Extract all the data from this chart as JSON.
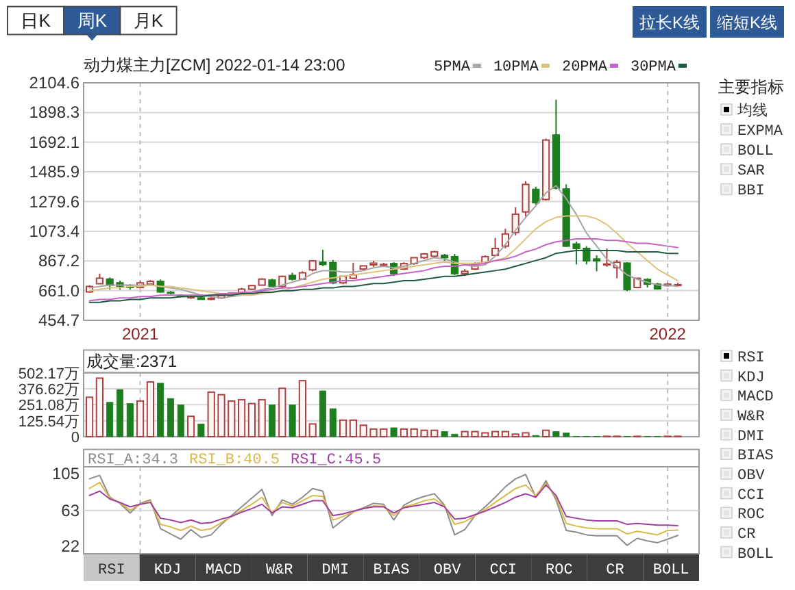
{
  "chart_data": [
    {
      "type": "other",
      "categories": [
        "日K",
        "周K",
        "月K",
        "拉长K线",
        "缩短K线"
      ],
      "colors": [
        "#ffffff",
        "#2e5b97",
        "#ffffff",
        "#2e5b97",
        "#2e5b97"
      ]
    },
    {
      "type": "candlestick",
      "title": "动力煤主力[ZCM] 2022-01-14 23:00",
      "categories": [
        null,
        null,
        null,
        null,
        null,
        "2021",
        null,
        null,
        null,
        null,
        null,
        null,
        null,
        null,
        null,
        null,
        null,
        null,
        null,
        null,
        null,
        null,
        null,
        null,
        null,
        null,
        null,
        null,
        null,
        null,
        null,
        null,
        null,
        null,
        null,
        null,
        null,
        null,
        null,
        null,
        null,
        null,
        null,
        null,
        null,
        null,
        null,
        null,
        null,
        null,
        null,
        null,
        null,
        null,
        null,
        null,
        null,
        "2022",
        null
      ],
      "ohlc": [
        [
          652,
          699,
          646,
          690
        ],
        [
          709,
          779,
          706,
          747
        ],
        [
          741,
          753,
          668,
          699
        ],
        [
          715,
          731,
          668,
          693
        ],
        [
          690,
          706,
          668,
          683
        ],
        [
          683,
          728,
          677,
          715
        ],
        [
          706,
          734,
          699,
          725
        ],
        [
          725,
          738,
          646,
          652
        ],
        [
          649,
          658,
          636,
          643
        ],
        [
          627,
          636,
          614,
          620
        ],
        [
          611,
          627,
          604,
          617
        ],
        [
          610,
          617,
          598,
          601
        ],
        [
          601,
          620,
          595,
          608
        ],
        [
          610,
          630,
          604,
          627
        ],
        [
          627,
          646,
          620,
          643
        ],
        [
          646,
          680,
          640,
          671
        ],
        [
          671,
          699,
          665,
          696
        ],
        [
          699,
          747,
          699,
          741
        ],
        [
          734,
          744,
          687,
          693
        ],
        [
          690,
          766,
          674,
          760
        ],
        [
          766,
          785,
          731,
          741
        ],
        [
          741,
          795,
          738,
          785
        ],
        [
          805,
          874,
          795,
          868
        ],
        [
          858,
          944,
          830,
          843
        ],
        [
          855,
          874,
          706,
          715
        ],
        [
          715,
          763,
          706,
          760
        ],
        [
          747,
          855,
          741,
          772
        ],
        [
          811,
          836,
          805,
          833
        ],
        [
          840,
          868,
          827,
          852
        ],
        [
          840,
          855,
          827,
          843
        ],
        [
          849,
          858,
          763,
          779
        ],
        [
          811,
          858,
          805,
          849
        ],
        [
          849,
          890,
          840,
          890
        ],
        [
          890,
          922,
          881,
          916
        ],
        [
          900,
          938,
          890,
          931
        ],
        [
          906,
          916,
          868,
          890
        ],
        [
          897,
          916,
          769,
          779
        ],
        [
          779,
          811,
          763,
          795
        ],
        [
          811,
          858,
          805,
          843
        ],
        [
          858,
          906,
          849,
          897
        ],
        [
          906,
          1027,
          900,
          954
        ],
        [
          970,
          1091,
          954,
          1055
        ],
        [
          1065,
          1240,
          1045,
          1192
        ],
        [
          1208,
          1420,
          1176,
          1399
        ],
        [
          1364,
          1383,
          1256,
          1272
        ],
        [
          1294,
          1717,
          1287,
          1707
        ],
        [
          1742,
          1987,
          1364,
          1373
        ],
        [
          1367,
          1399,
          965,
          970
        ],
        [
          985,
          1001,
          843,
          954
        ],
        [
          954,
          970,
          843,
          868
        ],
        [
          881,
          906,
          795,
          868
        ],
        [
          840,
          954,
          827,
          846
        ],
        [
          820,
          874,
          747,
          858
        ],
        [
          852,
          858,
          658,
          668
        ],
        [
          683,
          747,
          677,
          747
        ],
        [
          738,
          747,
          683,
          706
        ],
        [
          706,
          715,
          668,
          674
        ],
        [
          696,
          715,
          690,
          706
        ],
        [
          700,
          715,
          690,
          702
        ]
      ],
      "colors": [
        "#b04040",
        "#b04040",
        "#1e7d1e",
        "#1e7d1e",
        "#1e7d1e",
        "#b04040",
        "#b04040",
        "#1e7d1e",
        "#1e7d1e",
        "#1e7d1e",
        "#b04040",
        "#1e7d1e",
        "#b04040",
        "#b04040",
        "#b04040",
        "#b04040",
        "#b04040",
        "#b04040",
        "#1e7d1e",
        "#b04040",
        "#1e7d1e",
        "#b04040",
        "#b04040",
        "#1e7d1e",
        "#1e7d1e",
        "#b04040",
        "#b04040",
        "#b04040",
        "#b04040",
        "#b04040",
        "#1e7d1e",
        "#b04040",
        "#b04040",
        "#b04040",
        "#b04040",
        "#1e7d1e",
        "#1e7d1e",
        "#b04040",
        "#b04040",
        "#b04040",
        "#b04040",
        "#b04040",
        "#b04040",
        "#b04040",
        "#1e7d1e",
        "#b04040",
        "#1e7d1e",
        "#1e7d1e",
        "#1e7d1e",
        "#1e7d1e",
        "#1e7d1e",
        "#b04040",
        "#b04040",
        "#1e7d1e",
        "#b04040",
        "#1e7d1e",
        "#1e7d1e",
        "#b04040",
        "#b04040"
      ],
      "series": [
        {
          "name": "5PMA",
          "type": "line",
          "color": "#a4a4a4",
          "values": [
            680,
            690,
            700,
            700,
            700,
            700,
            700,
            690,
            680,
            670,
            650,
            630,
            620,
            610,
            620,
            630,
            650,
            670,
            680,
            700,
            720,
            740,
            780,
            800,
            800,
            790,
            790,
            800,
            820,
            830,
            820,
            830,
            850,
            870,
            890,
            880,
            860,
            840,
            830,
            840,
            900,
            980,
            1080,
            1170,
            1250,
            1340,
            1390,
            1300,
            1190,
            1060,
            970,
            880,
            830,
            770,
            740,
            720,
            700,
            700,
            690
          ]
        },
        {
          "name": "10PMA",
          "type": "line",
          "color": "#dcc27c",
          "values": [
            660,
            670,
            680,
            680,
            690,
            690,
            700,
            690,
            690,
            680,
            670,
            660,
            650,
            640,
            630,
            630,
            630,
            640,
            650,
            660,
            680,
            700,
            720,
            740,
            750,
            760,
            770,
            780,
            790,
            800,
            810,
            820,
            830,
            840,
            850,
            860,
            850,
            850,
            850,
            860,
            870,
            890,
            950,
            1020,
            1090,
            1140,
            1170,
            1180,
            1180,
            1180,
            1160,
            1120,
            1060,
            990,
            930,
            870,
            810,
            770,
            730
          ]
        },
        {
          "name": "20PMA",
          "type": "line",
          "color": "#c662c6",
          "values": [
            590,
            600,
            600,
            610,
            610,
            620,
            620,
            630,
            630,
            630,
            630,
            630,
            630,
            640,
            640,
            650,
            650,
            660,
            670,
            680,
            680,
            690,
            700,
            710,
            720,
            730,
            730,
            740,
            750,
            760,
            770,
            780,
            790,
            800,
            820,
            830,
            830,
            840,
            840,
            850,
            870,
            880,
            900,
            930,
            950,
            980,
            1000,
            1010,
            1020,
            1020,
            1020,
            1010,
            1010,
            1000,
            990,
            990,
            980,
            970,
            960
          ]
        },
        {
          "name": "30PMA",
          "type": "line",
          "color": "#1e5a3c",
          "values": [
            580,
            580,
            590,
            590,
            600,
            600,
            610,
            610,
            610,
            620,
            620,
            620,
            630,
            630,
            630,
            640,
            640,
            650,
            650,
            660,
            660,
            670,
            670,
            680,
            680,
            690,
            690,
            700,
            710,
            710,
            720,
            730,
            730,
            740,
            750,
            760,
            760,
            770,
            780,
            790,
            800,
            810,
            830,
            850,
            870,
            890,
            920,
            930,
            940,
            940,
            940,
            940,
            940,
            930,
            930,
            930,
            930,
            920,
            920
          ]
        }
      ],
      "ylim": [
        454.7,
        2104.6
      ],
      "yticks": [
        454.7,
        {
          "value": 661,
          "label": "661.0"
        },
        867.2,
        1073.4,
        1279.6,
        1485.9,
        1692.1,
        1898.3,
        2104.6
      ],
      "grid": true,
      "legend": "top right"
    },
    {
      "type": "bar",
      "title": "成交量:2371",
      "categories": [
        null,
        null,
        null,
        null,
        null,
        "2021",
        null,
        null,
        null,
        null,
        null,
        null,
        null,
        null,
        null,
        null,
        null,
        null,
        null,
        null,
        null,
        null,
        null,
        null,
        null,
        null,
        null,
        null,
        null,
        null,
        null,
        null,
        null,
        null,
        null,
        null,
        null,
        null,
        null,
        null,
        null,
        null,
        null,
        null,
        null,
        null,
        null,
        null,
        null,
        null,
        null,
        null,
        null,
        null,
        null,
        null,
        null,
        "2022",
        null
      ],
      "values": [
        310,
        460,
        270,
        370,
        260,
        280,
        430,
        420,
        300,
        250,
        160,
        100,
        350,
        330,
        280,
        290,
        260,
        290,
        250,
        380,
        250,
        440,
        100,
        360,
        220,
        130,
        130,
        90,
        60,
        60,
        70,
        60,
        60,
        50,
        50,
        40,
        20,
        40,
        40,
        30,
        40,
        40,
        20,
        30,
        10,
        50,
        40,
        30,
        3,
        3,
        3,
        3,
        3,
        3,
        3,
        3,
        3,
        3,
        3
      ],
      "colors": [
        "#b04040",
        "#b04040",
        "#1e7d1e",
        "#1e7d1e",
        "#1e7d1e",
        "#b04040",
        "#b04040",
        "#1e7d1e",
        "#1e7d1e",
        "#1e7d1e",
        "#b04040",
        "#1e7d1e",
        "#b04040",
        "#b04040",
        "#b04040",
        "#b04040",
        "#b04040",
        "#b04040",
        "#1e7d1e",
        "#b04040",
        "#1e7d1e",
        "#b04040",
        "#b04040",
        "#1e7d1e",
        "#1e7d1e",
        "#b04040",
        "#b04040",
        "#b04040",
        "#b04040",
        "#b04040",
        "#1e7d1e",
        "#b04040",
        "#b04040",
        "#b04040",
        "#b04040",
        "#1e7d1e",
        "#1e7d1e",
        "#b04040",
        "#b04040",
        "#b04040",
        "#b04040",
        "#b04040",
        "#b04040",
        "#b04040",
        "#1e7d1e",
        "#b04040",
        "#1e7d1e",
        "#1e7d1e",
        "#1e7d1e",
        "#1e7d1e",
        "#1e7d1e",
        "#b04040",
        "#b04040",
        "#1e7d1e",
        "#b04040",
        "#1e7d1e",
        "#1e7d1e",
        "#b04040",
        "#b04040"
      ],
      "ylim": [
        0,
        502.17
      ],
      "yticks": [
        0,
        {
          "value": 125.54,
          "label": "125.54万"
        },
        {
          "value": 251.08,
          "label": "251.08万"
        },
        {
          "value": 376.62,
          "label": "376.62万"
        },
        {
          "value": 502.17,
          "label": "502.17万"
        }
      ],
      "grid": true,
      "tick_labels": "y"
    },
    {
      "type": "line",
      "categories": [
        null,
        null,
        null,
        null,
        null,
        "2021",
        null,
        null,
        null,
        null,
        null,
        null,
        null,
        null,
        null,
        null,
        null,
        null,
        null,
        null,
        null,
        null,
        null,
        null,
        null,
        null,
        null,
        null,
        null,
        null,
        null,
        null,
        null,
        null,
        null,
        null,
        null,
        null,
        null,
        null,
        null,
        null,
        null,
        null,
        null,
        null,
        null,
        null,
        null,
        null,
        null,
        null,
        null,
        null,
        null,
        null,
        null,
        "2022",
        null
      ],
      "series": [
        {
          "name": "RSI_A:34.3",
          "color": "#8c8c8c",
          "values": [
            99,
            103,
            78,
            71,
            60,
            71,
            75,
            42,
            36,
            30,
            41,
            32,
            35,
            47,
            57,
            67,
            77,
            87,
            57,
            75,
            70,
            78,
            88,
            85,
            43,
            52,
            61,
            66,
            71,
            70,
            52,
            69,
            75,
            79,
            82,
            69,
            35,
            41,
            57,
            67,
            78,
            90,
            99,
            104,
            78,
            97,
            75,
            40,
            38,
            35,
            34,
            34,
            34,
            23,
            31,
            28,
            26,
            30,
            34.3
          ]
        },
        {
          "name": "RSI_B:40.5",
          "color": "#d9b94a",
          "values": [
            88,
            95,
            77,
            72,
            63,
            70,
            74,
            47,
            44,
            40,
            45,
            40,
            42,
            49,
            56,
            63,
            70,
            78,
            60,
            72,
            68,
            74,
            80,
            79,
            52,
            56,
            61,
            65,
            68,
            68,
            57,
            67,
            70,
            74,
            76,
            68,
            47,
            50,
            57,
            64,
            72,
            80,
            88,
            92,
            80,
            94,
            78,
            48,
            45,
            43,
            42,
            42,
            42,
            36,
            39,
            37,
            35,
            40,
            40.5
          ]
        },
        {
          "name": "RSI_C:45.5",
          "color": "#a23ea2",
          "values": [
            80,
            85,
            76,
            72,
            67,
            70,
            72,
            54,
            52,
            49,
            52,
            48,
            49,
            53,
            56,
            61,
            65,
            70,
            60,
            67,
            66,
            70,
            74,
            74,
            57,
            59,
            62,
            65,
            67,
            67,
            60,
            66,
            68,
            70,
            72,
            67,
            53,
            54,
            58,
            62,
            67,
            72,
            78,
            82,
            78,
            92,
            80,
            56,
            54,
            52,
            51,
            51,
            51,
            47,
            48,
            47,
            46,
            46,
            45.5
          ]
        }
      ],
      "ylim": [
        13.4,
        112.8
      ],
      "yticks": [
        22,
        63,
        105
      ],
      "ref_lines": [
        {
          "axis": "y",
          "value": 63,
          "color": "#d6d6d6"
        }
      ],
      "grid": "x",
      "legend": "top left",
      "tick_labels": "y"
    },
    {
      "type": "other",
      "categories": [
        "RSI",
        "KDJ",
        "MACD",
        "W&R",
        "DMI",
        "BIAS",
        "OBV",
        "CCI",
        "ROC",
        "CR",
        "BOLL"
      ],
      "colors": [
        "#c8c8c8",
        "#3d3d3d",
        "#3d3d3d",
        "#3d3d3d",
        "#3d3d3d",
        "#3d3d3d",
        "#3d3d3d",
        "#3d3d3d",
        "#3d3d3d",
        "#3d3d3d",
        "#3d3d3d"
      ]
    },
    {
      "type": "other",
      "title": "主要指标",
      "categories": [
        "均线",
        "EXPMA",
        "BOLL",
        "SAR",
        "BBI"
      ],
      "colors": [
        "#000000",
        "#e4e4e4",
        "#e4e4e4",
        "#e4e4e4",
        "#e4e4e4"
      ]
    },
    {
      "type": "other",
      "categories": [
        "RSI",
        "KDJ",
        "MACD",
        "W&R",
        "DMI",
        "BIAS",
        "OBV",
        "CCI",
        "ROC",
        "CR",
        "BOLL"
      ],
      "colors": [
        "#000000",
        "#e4e4e4",
        "#e4e4e4",
        "#e4e4e4",
        "#e4e4e4",
        "#e4e4e4",
        "#e4e4e4",
        "#e4e4e4",
        "#e4e4e4",
        "#e4e4e4",
        "#e4e4e4"
      ]
    }
  ]
}
